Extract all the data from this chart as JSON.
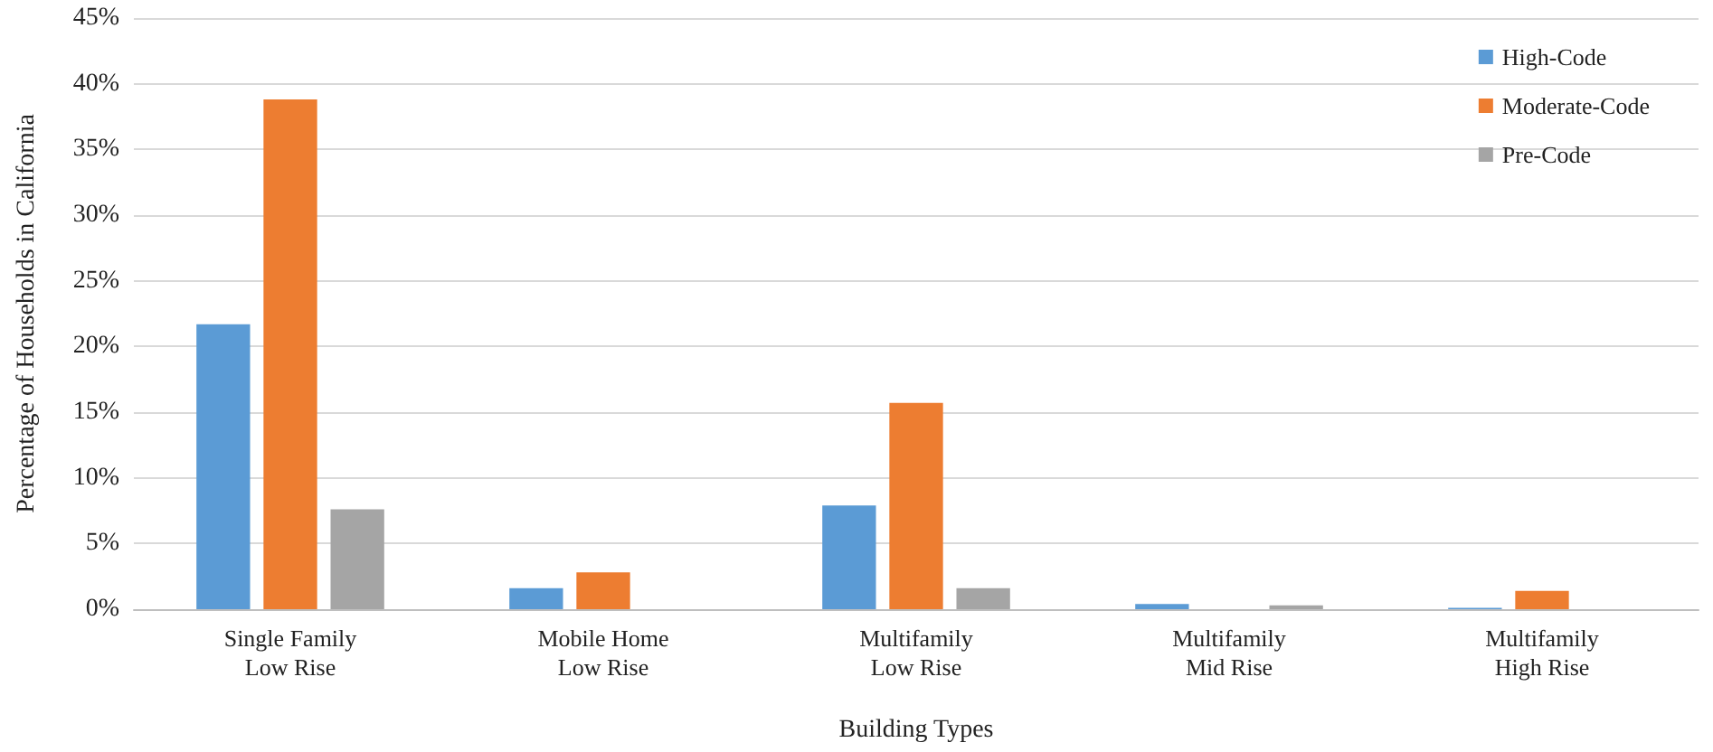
{
  "chart_data": {
    "type": "bar",
    "xlabel": "Building Types",
    "ylabel": "Percentage of Households in California",
    "categories": [
      "Single Family\nLow Rise",
      "Mobile Home\nLow Rise",
      "Multifamily\nLow Rise",
      "Multifamily\nMid Rise",
      "Multifamily\nHigh Rise"
    ],
    "series": [
      {
        "name": "High-Code",
        "color": "#5b9bd5",
        "values": [
          21.7,
          1.6,
          7.9,
          0.4,
          0.1
        ]
      },
      {
        "name": "Moderate-Code",
        "color": "#ed7d31",
        "values": [
          38.8,
          2.8,
          15.7,
          0,
          1.4
        ]
      },
      {
        "name": "Pre-Code",
        "color": "#a5a5a5",
        "values": [
          7.6,
          0,
          1.6,
          0.3,
          0
        ]
      }
    ],
    "ylim": [
      0,
      45
    ],
    "yticks": [
      {
        "value": 0,
        "label": "0%"
      },
      {
        "value": 5,
        "label": "5%"
      },
      {
        "value": 10,
        "label": "10%"
      },
      {
        "value": 15,
        "label": "15%"
      },
      {
        "value": 20,
        "label": "20%"
      },
      {
        "value": 25,
        "label": "25%"
      },
      {
        "value": 30,
        "label": "30%"
      },
      {
        "value": 35,
        "label": "35%"
      },
      {
        "value": 40,
        "label": "40%"
      },
      {
        "value": 45,
        "label": "45%"
      }
    ],
    "grid": "y",
    "legend": "top right"
  }
}
